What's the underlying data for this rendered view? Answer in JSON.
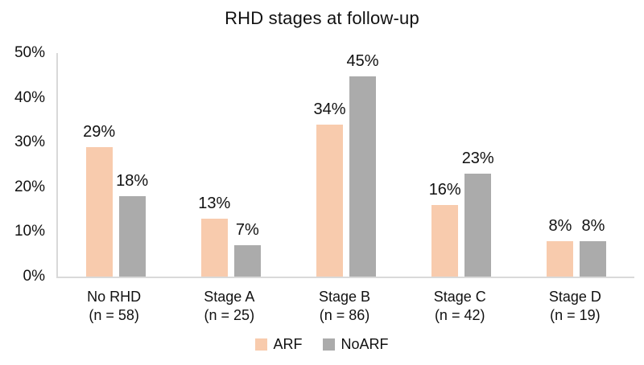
{
  "chart_data": {
    "type": "bar",
    "title": "RHD stages at follow-up",
    "categories": [
      "No RHD",
      "Stage A",
      "Stage B",
      "Stage C",
      "Stage D"
    ],
    "category_sublabels": [
      "(n = 58)",
      "(n = 25)",
      "(n = 86)",
      "(n = 42)",
      "(n = 19)"
    ],
    "series": [
      {
        "name": "ARF",
        "color": "#F8CBAD",
        "values": [
          29,
          13,
          34,
          16,
          8
        ],
        "labels": [
          "29%",
          "13%",
          "34%",
          "16%",
          "8%"
        ]
      },
      {
        "name": "NoARF",
        "color": "#ABABAB",
        "values": [
          18,
          7,
          45,
          23,
          8
        ],
        "labels": [
          "18%",
          "7%",
          "45%",
          "23%",
          "8%"
        ]
      }
    ],
    "xlabel": "",
    "ylabel": "",
    "ylim": [
      0,
      50
    ],
    "y_ticks": [
      "0%",
      "10%",
      "20%",
      "30%",
      "40%",
      "50%"
    ],
    "grid": false,
    "legend_position": "bottom"
  },
  "colors": {
    "axis_line": "#d9d9d9",
    "text": "#111111"
  }
}
